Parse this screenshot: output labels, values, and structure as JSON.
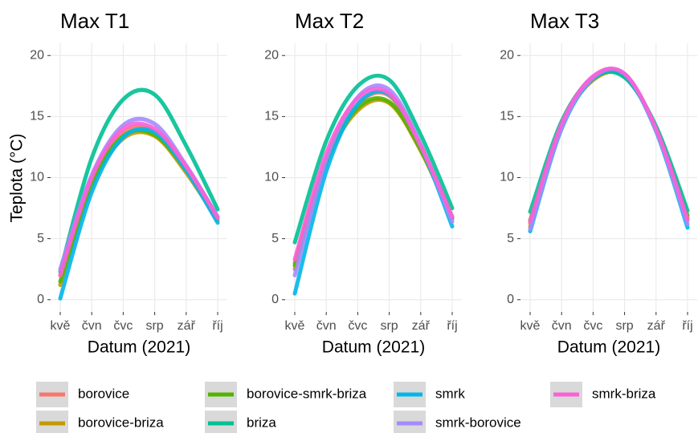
{
  "chart_data": [
    {
      "type": "line",
      "title": "Max T1",
      "y_label": "Teplota (°C)",
      "x_label": "Datum (2021)",
      "categories": [
        "kvě",
        "čvn",
        "čvc",
        "srp",
        "zář",
        "říj"
      ],
      "ylim": [
        -1,
        21
      ],
      "yticks": [
        0,
        5,
        10,
        15,
        20
      ],
      "grid": true,
      "legend": "bottom",
      "series": [
        {
          "name": "borovice",
          "color": "#F8766D",
          "values": [
            2.0,
            9.8,
            13.7,
            13.8,
            10.8,
            6.8
          ]
        },
        {
          "name": "borovice-briza",
          "color": "#C49A00",
          "values": [
            1.2,
            9.3,
            13.2,
            13.4,
            10.4,
            6.5
          ]
        },
        {
          "name": "borovice-smrk-briza",
          "color": "#53B400",
          "values": [
            1.5,
            9.5,
            13.4,
            13.5,
            10.6,
            6.7
          ]
        },
        {
          "name": "briza",
          "color": "#00C094",
          "values": [
            2.3,
            11.6,
            16.4,
            16.8,
            12.6,
            7.4
          ]
        },
        {
          "name": "smrk",
          "color": "#00B6EB",
          "values": [
            0.1,
            8.8,
            13.3,
            13.7,
            10.6,
            6.3
          ]
        },
        {
          "name": "smrk-borovice",
          "color": "#A58AFF",
          "values": [
            2.5,
            10.2,
            14.3,
            14.4,
            11.0,
            6.8
          ]
        },
        {
          "name": "smrk-briza",
          "color": "#FB61D7",
          "values": [
            2.0,
            10.0,
            14.0,
            14.0,
            10.9,
            6.7
          ]
        }
      ]
    },
    {
      "type": "line",
      "title": "Max T2",
      "x_label": "Datum (2021)",
      "categories": [
        "kvě",
        "čvn",
        "čvc",
        "srp",
        "zář",
        "říj"
      ],
      "ylim": [
        -1,
        21
      ],
      "yticks": [
        0,
        5,
        10,
        15,
        20
      ],
      "grid": true,
      "series": [
        {
          "name": "borovice",
          "color": "#F8766D",
          "values": [
            3.0,
            11.5,
            16.0,
            16.7,
            12.5,
            6.8
          ]
        },
        {
          "name": "borovice-briza",
          "color": "#C49A00",
          "values": [
            2.5,
            11.2,
            15.5,
            16.1,
            12.2,
            6.6
          ]
        },
        {
          "name": "borovice-smrk-briza",
          "color": "#53B400",
          "values": [
            2.8,
            11.3,
            15.7,
            16.2,
            12.3,
            6.7
          ]
        },
        {
          "name": "briza",
          "color": "#00C094",
          "values": [
            4.7,
            13.0,
            17.5,
            18.0,
            13.5,
            7.5
          ]
        },
        {
          "name": "smrk",
          "color": "#00B6EB",
          "values": [
            0.5,
            10.5,
            16.0,
            16.8,
            12.6,
            6.0
          ]
        },
        {
          "name": "smrk-borovice",
          "color": "#A58AFF",
          "values": [
            2.0,
            11.5,
            16.6,
            17.2,
            12.7,
            6.4
          ]
        },
        {
          "name": "smrk-briza",
          "color": "#FB61D7",
          "values": [
            3.3,
            12.0,
            16.5,
            16.9,
            12.6,
            6.8
          ]
        }
      ]
    },
    {
      "type": "line",
      "title": "Max T3",
      "x_label": "Datum (2021)",
      "categories": [
        "kvě",
        "čvn",
        "čvc",
        "srp",
        "zář",
        "říj"
      ],
      "ylim": [
        -1,
        21
      ],
      "yticks": [
        0,
        5,
        10,
        15,
        20
      ],
      "grid": true,
      "series": [
        {
          "name": "borovice",
          "color": "#F8766D",
          "values": [
            6.3,
            14.3,
            18.0,
            18.3,
            14.0,
            6.7
          ]
        },
        {
          "name": "borovice-briza",
          "color": "#C49A00",
          "values": [
            6.0,
            14.2,
            18.0,
            18.3,
            14.0,
            6.5
          ]
        },
        {
          "name": "borovice-smrk-briza",
          "color": "#53B400",
          "values": [
            6.5,
            14.4,
            18.1,
            18.3,
            14.1,
            6.9
          ]
        },
        {
          "name": "briza",
          "color": "#00C094",
          "values": [
            7.2,
            14.6,
            18.2,
            18.2,
            14.2,
            7.3
          ]
        },
        {
          "name": "smrk",
          "color": "#00B6EB",
          "values": [
            5.6,
            14.0,
            18.1,
            18.4,
            13.8,
            5.9
          ]
        },
        {
          "name": "smrk-borovice",
          "color": "#A58AFF",
          "values": [
            5.8,
            14.1,
            18.2,
            18.5,
            13.9,
            6.2
          ]
        },
        {
          "name": "smrk-briza",
          "color": "#FB61D7",
          "values": [
            6.4,
            14.4,
            18.3,
            18.5,
            14.0,
            6.6
          ]
        }
      ]
    }
  ]
}
